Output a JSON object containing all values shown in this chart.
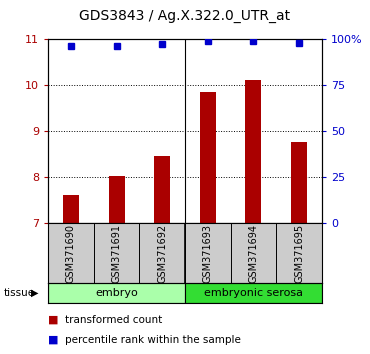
{
  "title": "GDS3843 / Ag.X.322.0_UTR_at",
  "samples": [
    "GSM371690",
    "GSM371691",
    "GSM371692",
    "GSM371693",
    "GSM371694",
    "GSM371695"
  ],
  "transformed_counts": [
    7.6,
    8.02,
    8.45,
    9.85,
    10.1,
    8.75
  ],
  "percentile_ranks": [
    96,
    96,
    97,
    99,
    99,
    98
  ],
  "ylim_left": [
    7,
    11
  ],
  "ylim_right": [
    0,
    100
  ],
  "yticks_left": [
    7,
    8,
    9,
    10,
    11
  ],
  "yticks_right": [
    0,
    25,
    50,
    75,
    100
  ],
  "yticklabels_right": [
    "0",
    "25",
    "50",
    "75",
    "100%"
  ],
  "bar_color": "#AA0000",
  "dot_color": "#0000CC",
  "tissue_groups": [
    {
      "label": "embryo",
      "samples": [
        0,
        1,
        2
      ],
      "color": "#AAFFAA"
    },
    {
      "label": "embryonic serosa",
      "samples": [
        3,
        4,
        5
      ],
      "color": "#33DD33"
    }
  ],
  "tissue_label": "tissue",
  "legend_bar_label": "transformed count",
  "legend_dot_label": "percentile rank within the sample",
  "background_color": "#FFFFFF",
  "plot_bg_color": "#FFFFFF",
  "grid_color": "#000000",
  "sample_box_color": "#CCCCCC",
  "title_fontsize": 10,
  "tick_fontsize": 8,
  "label_fontsize": 8
}
